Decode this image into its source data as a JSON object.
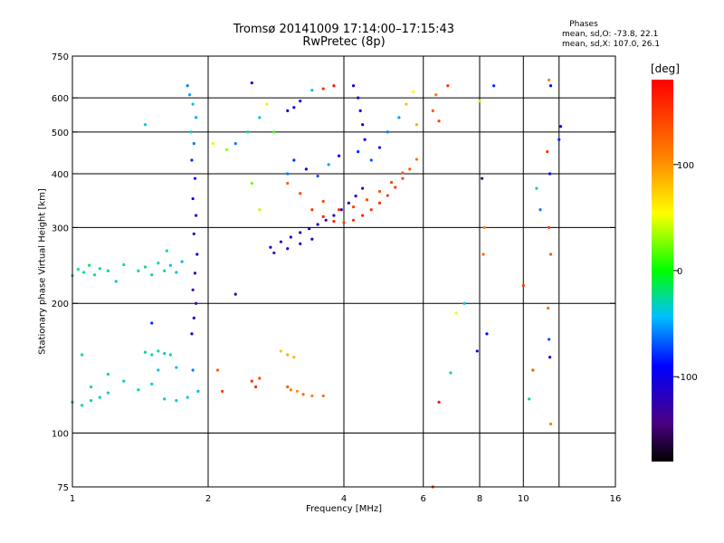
{
  "title": "Tromsø 20141009 17:14:00–17:15:43",
  "subtitle": "RwPretec (8p)",
  "legend": {
    "title": "Phases",
    "o_stats": "mean, sd,O: -73.8, 22.1",
    "x_stats": "mean, sd,X: 107.0, 26.1"
  },
  "colorbar": {
    "unit": "[deg]",
    "ticks": [
      {
        "value": 100,
        "label": "100"
      },
      {
        "value": 0,
        "label": "0"
      },
      {
        "value": -100,
        "label": "-100"
      }
    ],
    "range": [
      -180,
      180
    ]
  },
  "chart_data": {
    "type": "scatter",
    "title": "Tromsø 20141009 17:14:00–17:15:43",
    "subtitle": "RwPretec (8p)",
    "xlabel": "Frequency [MHz]",
    "ylabel": "Stationary phase Virtual Height [km]",
    "x_scale": "log",
    "y_scale": "log",
    "xlim": [
      1,
      16
    ],
    "ylim": [
      75,
      750
    ],
    "x_ticks": [
      {
        "value": 1,
        "label": "1"
      },
      {
        "value": 2,
        "label": "2"
      },
      {
        "value": 4,
        "label": "4"
      },
      {
        "value": 6,
        "label": "6"
      },
      {
        "value": 8,
        "label": "8"
      },
      {
        "value": 10,
        "label": "10"
      },
      {
        "value": 16,
        "label": "16"
      }
    ],
    "y_ticks": [
      {
        "value": 75,
        "label": "75"
      },
      {
        "value": 100,
        "label": "100"
      },
      {
        "value": 200,
        "label": "200"
      },
      {
        "value": 300,
        "label": "300"
      },
      {
        "value": 400,
        "label": "400"
      },
      {
        "value": 500,
        "label": "500"
      },
      {
        "value": 600,
        "label": "600"
      },
      {
        "value": 750,
        "label": "750"
      }
    ],
    "x_gridlines": [
      2,
      4,
      6,
      8,
      10,
      12
    ],
    "y_gridlines": [
      100,
      200,
      300,
      400,
      500,
      600
    ],
    "color_variable": "phase [deg]",
    "points": [
      {
        "x": 1.0,
        "y": 232,
        "phase": -30
      },
      {
        "x": 1.03,
        "y": 240,
        "phase": -20
      },
      {
        "x": 1.06,
        "y": 236,
        "phase": -25
      },
      {
        "x": 1.09,
        "y": 245,
        "phase": -15
      },
      {
        "x": 1.12,
        "y": 233,
        "phase": -30
      },
      {
        "x": 1.15,
        "y": 241,
        "phase": -20
      },
      {
        "x": 1.2,
        "y": 238,
        "phase": -25
      },
      {
        "x": 1.25,
        "y": 225,
        "phase": -35
      },
      {
        "x": 1.3,
        "y": 246,
        "phase": -20
      },
      {
        "x": 1.4,
        "y": 238,
        "phase": -25
      },
      {
        "x": 1.45,
        "y": 243,
        "phase": -20
      },
      {
        "x": 1.5,
        "y": 233,
        "phase": -30
      },
      {
        "x": 1.55,
        "y": 248,
        "phase": -25
      },
      {
        "x": 1.6,
        "y": 238,
        "phase": -30
      },
      {
        "x": 1.65,
        "y": 245,
        "phase": -40
      },
      {
        "x": 1.7,
        "y": 236,
        "phase": -35
      },
      {
        "x": 1.75,
        "y": 250,
        "phase": -45
      },
      {
        "x": 1.62,
        "y": 265,
        "phase": -30
      },
      {
        "x": 1.0,
        "y": 118,
        "phase": -30
      },
      {
        "x": 1.05,
        "y": 116,
        "phase": -25
      },
      {
        "x": 1.1,
        "y": 119,
        "phase": -30
      },
      {
        "x": 1.15,
        "y": 121,
        "phase": -35
      },
      {
        "x": 1.2,
        "y": 124,
        "phase": -40
      },
      {
        "x": 1.1,
        "y": 128,
        "phase": -30
      },
      {
        "x": 1.3,
        "y": 132,
        "phase": -35
      },
      {
        "x": 1.4,
        "y": 126,
        "phase": -30
      },
      {
        "x": 1.5,
        "y": 130,
        "phase": -40
      },
      {
        "x": 1.6,
        "y": 120,
        "phase": -35
      },
      {
        "x": 1.7,
        "y": 119,
        "phase": -40
      },
      {
        "x": 1.8,
        "y": 121,
        "phase": -35
      },
      {
        "x": 1.9,
        "y": 125,
        "phase": -45
      },
      {
        "x": 1.45,
        "y": 154,
        "phase": -25
      },
      {
        "x": 1.5,
        "y": 152,
        "phase": -30
      },
      {
        "x": 1.55,
        "y": 155,
        "phase": -25
      },
      {
        "x": 1.6,
        "y": 153,
        "phase": -35
      },
      {
        "x": 1.65,
        "y": 152,
        "phase": -30
      },
      {
        "x": 1.55,
        "y": 140,
        "phase": -40
      },
      {
        "x": 1.7,
        "y": 142,
        "phase": -45
      },
      {
        "x": 1.85,
        "y": 140,
        "phase": -60
      },
      {
        "x": 1.05,
        "y": 152,
        "phase": -25
      },
      {
        "x": 1.2,
        "y": 137,
        "phase": -30
      },
      {
        "x": 1.5,
        "y": 180,
        "phase": -80
      },
      {
        "x": 1.8,
        "y": 640,
        "phase": -60
      },
      {
        "x": 1.82,
        "y": 610,
        "phase": -50
      },
      {
        "x": 1.85,
        "y": 580,
        "phase": -40
      },
      {
        "x": 1.88,
        "y": 540,
        "phase": -50
      },
      {
        "x": 1.83,
        "y": 500,
        "phase": -40
      },
      {
        "x": 1.86,
        "y": 470,
        "phase": -60
      },
      {
        "x": 1.84,
        "y": 430,
        "phase": -80
      },
      {
        "x": 1.87,
        "y": 390,
        "phase": -90
      },
      {
        "x": 1.85,
        "y": 350,
        "phase": -100
      },
      {
        "x": 1.88,
        "y": 320,
        "phase": -110
      },
      {
        "x": 1.86,
        "y": 290,
        "phase": -120
      },
      {
        "x": 1.89,
        "y": 260,
        "phase": -110
      },
      {
        "x": 1.87,
        "y": 235,
        "phase": -120
      },
      {
        "x": 1.85,
        "y": 215,
        "phase": -130
      },
      {
        "x": 1.88,
        "y": 200,
        "phase": -125
      },
      {
        "x": 1.86,
        "y": 185,
        "phase": -110
      },
      {
        "x": 1.84,
        "y": 170,
        "phase": -100
      },
      {
        "x": 1.45,
        "y": 520,
        "phase": -40
      },
      {
        "x": 2.05,
        "y": 470,
        "phase": 50
      },
      {
        "x": 2.2,
        "y": 455,
        "phase": 30
      },
      {
        "x": 2.3,
        "y": 470,
        "phase": -60
      },
      {
        "x": 2.45,
        "y": 500,
        "phase": -30
      },
      {
        "x": 2.5,
        "y": 650,
        "phase": -100
      },
      {
        "x": 2.6,
        "y": 540,
        "phase": -40
      },
      {
        "x": 2.7,
        "y": 580,
        "phase": 60
      },
      {
        "x": 2.8,
        "y": 500,
        "phase": 10
      },
      {
        "x": 2.5,
        "y": 380,
        "phase": 20
      },
      {
        "x": 2.6,
        "y": 330,
        "phase": 40
      },
      {
        "x": 2.3,
        "y": 210,
        "phase": -130
      },
      {
        "x": 2.1,
        "y": 140,
        "phase": 130
      },
      {
        "x": 2.15,
        "y": 125,
        "phase": 150
      },
      {
        "x": 2.5,
        "y": 132,
        "phase": 150
      },
      {
        "x": 2.6,
        "y": 134,
        "phase": 140
      },
      {
        "x": 2.55,
        "y": 128,
        "phase": 160
      },
      {
        "x": 2.9,
        "y": 155,
        "phase": 80
      },
      {
        "x": 3.0,
        "y": 152,
        "phase": 90
      },
      {
        "x": 3.1,
        "y": 150,
        "phase": 85
      },
      {
        "x": 3.05,
        "y": 126,
        "phase": 110
      },
      {
        "x": 3.15,
        "y": 125,
        "phase": 100
      },
      {
        "x": 3.25,
        "y": 123,
        "phase": 120
      },
      {
        "x": 3.4,
        "y": 122,
        "phase": 110
      },
      {
        "x": 3.6,
        "y": 122,
        "phase": 120
      },
      {
        "x": 3.0,
        "y": 128,
        "phase": 130
      },
      {
        "x": 2.75,
        "y": 270,
        "phase": -110
      },
      {
        "x": 2.9,
        "y": 278,
        "phase": -115
      },
      {
        "x": 3.05,
        "y": 285,
        "phase": -118
      },
      {
        "x": 3.2,
        "y": 292,
        "phase": -120
      },
      {
        "x": 3.35,
        "y": 298,
        "phase": -122
      },
      {
        "x": 3.5,
        "y": 305,
        "phase": -120
      },
      {
        "x": 3.65,
        "y": 312,
        "phase": -125
      },
      {
        "x": 3.8,
        "y": 320,
        "phase": -118
      },
      {
        "x": 3.95,
        "y": 330,
        "phase": -120
      },
      {
        "x": 4.1,
        "y": 342,
        "phase": -115
      },
      {
        "x": 4.25,
        "y": 355,
        "phase": -120
      },
      {
        "x": 4.4,
        "y": 370,
        "phase": -118
      },
      {
        "x": 2.8,
        "y": 262,
        "phase": -120
      },
      {
        "x": 3.0,
        "y": 268,
        "phase": -115
      },
      {
        "x": 3.2,
        "y": 275,
        "phase": -118
      },
      {
        "x": 3.4,
        "y": 282,
        "phase": -120
      },
      {
        "x": 3.0,
        "y": 380,
        "phase": 130
      },
      {
        "x": 3.2,
        "y": 360,
        "phase": 140
      },
      {
        "x": 3.4,
        "y": 330,
        "phase": 150
      },
      {
        "x": 3.6,
        "y": 318,
        "phase": 160
      },
      {
        "x": 3.8,
        "y": 310,
        "phase": 160
      },
      {
        "x": 4.0,
        "y": 308,
        "phase": 150
      },
      {
        "x": 4.2,
        "y": 312,
        "phase": 155
      },
      {
        "x": 4.4,
        "y": 320,
        "phase": 160
      },
      {
        "x": 4.6,
        "y": 330,
        "phase": 150
      },
      {
        "x": 4.8,
        "y": 342,
        "phase": 155
      },
      {
        "x": 5.0,
        "y": 356,
        "phase": 150
      },
      {
        "x": 5.2,
        "y": 372,
        "phase": 145
      },
      {
        "x": 5.4,
        "y": 390,
        "phase": 140
      },
      {
        "x": 5.6,
        "y": 410,
        "phase": 130
      },
      {
        "x": 5.8,
        "y": 432,
        "phase": 120
      },
      {
        "x": 3.6,
        "y": 345,
        "phase": 140
      },
      {
        "x": 3.9,
        "y": 330,
        "phase": 150
      },
      {
        "x": 4.2,
        "y": 335,
        "phase": 145
      },
      {
        "x": 4.5,
        "y": 348,
        "phase": 140
      },
      {
        "x": 4.8,
        "y": 364,
        "phase": 135
      },
      {
        "x": 5.1,
        "y": 382,
        "phase": 140
      },
      {
        "x": 5.4,
        "y": 402,
        "phase": 130
      },
      {
        "x": 3.0,
        "y": 400,
        "phase": -60
      },
      {
        "x": 3.1,
        "y": 430,
        "phase": -80
      },
      {
        "x": 3.3,
        "y": 410,
        "phase": -100
      },
      {
        "x": 3.5,
        "y": 395,
        "phase": -70
      },
      {
        "x": 3.7,
        "y": 420,
        "phase": -50
      },
      {
        "x": 3.9,
        "y": 440,
        "phase": -90
      },
      {
        "x": 4.2,
        "y": 640,
        "phase": -100
      },
      {
        "x": 4.3,
        "y": 600,
        "phase": -110
      },
      {
        "x": 4.35,
        "y": 560,
        "phase": -100
      },
      {
        "x": 4.4,
        "y": 520,
        "phase": -90
      },
      {
        "x": 4.45,
        "y": 480,
        "phase": -100
      },
      {
        "x": 4.3,
        "y": 450,
        "phase": -80
      },
      {
        "x": 4.6,
        "y": 430,
        "phase": -70
      },
      {
        "x": 4.8,
        "y": 460,
        "phase": -90
      },
      {
        "x": 5.0,
        "y": 500,
        "phase": -60
      },
      {
        "x": 5.3,
        "y": 540,
        "phase": -50
      },
      {
        "x": 5.5,
        "y": 580,
        "phase": 80
      },
      {
        "x": 5.7,
        "y": 620,
        "phase": 60
      },
      {
        "x": 5.8,
        "y": 520,
        "phase": 90
      },
      {
        "x": 3.6,
        "y": 630,
        "phase": 160
      },
      {
        "x": 3.8,
        "y": 640,
        "phase": 170
      },
      {
        "x": 3.4,
        "y": 625,
        "phase": -40
      },
      {
        "x": 3.1,
        "y": 570,
        "phase": -100
      },
      {
        "x": 3.0,
        "y": 560,
        "phase": -110
      },
      {
        "x": 3.2,
        "y": 590,
        "phase": -90
      },
      {
        "x": 6.3,
        "y": 560,
        "phase": 130
      },
      {
        "x": 6.5,
        "y": 530,
        "phase": 140
      },
      {
        "x": 6.4,
        "y": 610,
        "phase": 110
      },
      {
        "x": 6.8,
        "y": 640,
        "phase": 150
      },
      {
        "x": 6.3,
        "y": 75,
        "phase": 140
      },
      {
        "x": 6.5,
        "y": 118,
        "phase": 170
      },
      {
        "x": 6.9,
        "y": 138,
        "phase": -20
      },
      {
        "x": 7.1,
        "y": 190,
        "phase": 50
      },
      {
        "x": 7.4,
        "y": 200,
        "phase": -40
      },
      {
        "x": 7.9,
        "y": 155,
        "phase": -120
      },
      {
        "x": 8.0,
        "y": 590,
        "phase": 40
      },
      {
        "x": 8.1,
        "y": 390,
        "phase": -150
      },
      {
        "x": 8.2,
        "y": 300,
        "phase": 110
      },
      {
        "x": 8.15,
        "y": 260,
        "phase": 120
      },
      {
        "x": 8.3,
        "y": 170,
        "phase": -90
      },
      {
        "x": 8.6,
        "y": 640,
        "phase": -80
      },
      {
        "x": 10.0,
        "y": 220,
        "phase": 150
      },
      {
        "x": 10.3,
        "y": 120,
        "phase": -20
      },
      {
        "x": 10.5,
        "y": 140,
        "phase": 130
      },
      {
        "x": 10.7,
        "y": 370,
        "phase": -30
      },
      {
        "x": 10.9,
        "y": 330,
        "phase": -60
      },
      {
        "x": 11.4,
        "y": 660,
        "phase": 110
      },
      {
        "x": 11.5,
        "y": 640,
        "phase": -100
      },
      {
        "x": 11.3,
        "y": 450,
        "phase": 150
      },
      {
        "x": 11.45,
        "y": 400,
        "phase": -90
      },
      {
        "x": 11.4,
        "y": 300,
        "phase": 150
      },
      {
        "x": 11.5,
        "y": 260,
        "phase": 130
      },
      {
        "x": 11.35,
        "y": 195,
        "phase": 120
      },
      {
        "x": 11.4,
        "y": 165,
        "phase": -70
      },
      {
        "x": 11.45,
        "y": 150,
        "phase": -100
      },
      {
        "x": 11.5,
        "y": 105,
        "phase": 110
      },
      {
        "x": 12.1,
        "y": 515,
        "phase": -100
      },
      {
        "x": 12.0,
        "y": 480,
        "phase": -80
      }
    ]
  }
}
